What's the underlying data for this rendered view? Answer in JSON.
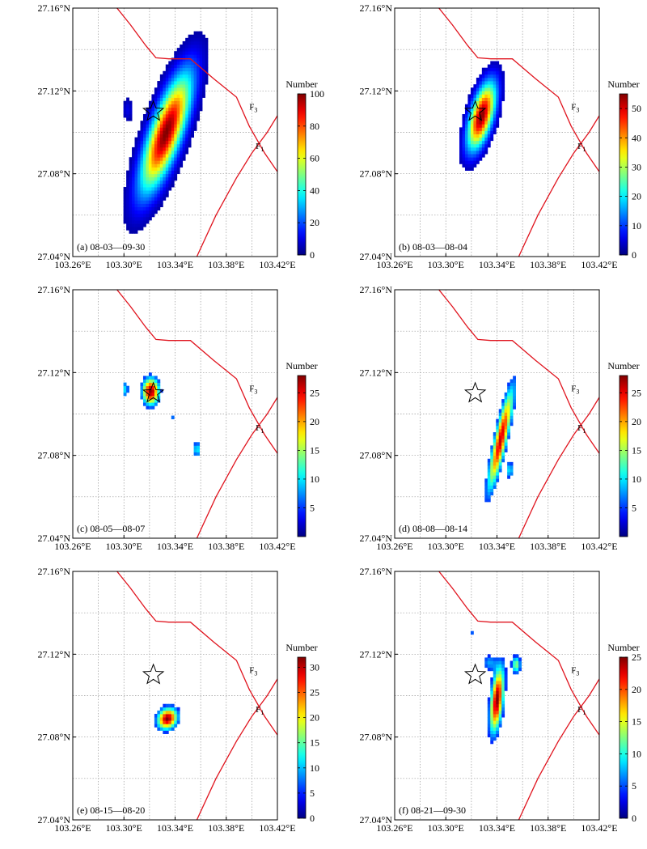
{
  "figure": {
    "panel_ids": [
      "a",
      "b",
      "c",
      "d",
      "e",
      "f"
    ],
    "colorbar_title": "Number",
    "fault_labels": {
      "f3": "F",
      "f3_sub": "3",
      "f1": "F",
      "f1_sub": "1"
    }
  },
  "chart_data": [
    {
      "id": "a",
      "type": "heatmap",
      "label": "(a) 08-03—09-30",
      "xlim": [
        103.26,
        103.42
      ],
      "ylim": [
        27.04,
        27.16
      ],
      "xticks": [
        "103.26°E",
        "103.30°E",
        "103.34°E",
        "103.38°E",
        "103.42°E"
      ],
      "yticks": [
        "27.04°N",
        "27.08°N",
        "27.12°N",
        "27.16°N"
      ],
      "colorbar": {
        "min": 0,
        "max": 100,
        "ticks": [
          "0",
          "20",
          "40",
          "60",
          "80",
          "100"
        ]
      },
      "epicenter": [
        103.323,
        27.11
      ],
      "blobs": [
        {
          "cx": 103.333,
          "cy": 27.1,
          "sx": 0.0075,
          "sy": 0.022,
          "rot": 32,
          "peak": 100
        },
        {
          "cx": 103.303,
          "cy": 27.111,
          "sx": 0.003,
          "sy": 0.004,
          "rot": 0,
          "peak": 10
        }
      ],
      "threshold": 4
    },
    {
      "id": "b",
      "type": "heatmap",
      "label": "(b) 08-03—08-04",
      "xlim": [
        103.26,
        103.42
      ],
      "ylim": [
        27.04,
        27.16
      ],
      "xticks": [
        "103.26°E",
        "103.30°E",
        "103.34°E",
        "103.38°E",
        "103.42°E"
      ],
      "yticks": [
        "27.04°N",
        "27.08°N",
        "27.12°N",
        "27.16°N"
      ],
      "colorbar": {
        "min": 0,
        "max": 55,
        "ticks": [
          "0",
          "10",
          "20",
          "30",
          "40",
          "50"
        ]
      },
      "epicenter": [
        103.323,
        27.11
      ],
      "blobs": [
        {
          "cx": 103.328,
          "cy": 27.108,
          "sx": 0.0055,
          "sy": 0.012,
          "rot": 28,
          "peak": 55
        }
      ],
      "threshold": 3
    },
    {
      "id": "c",
      "type": "heatmap",
      "label": "(c) 08-05—08-07",
      "xlim": [
        103.26,
        103.42
      ],
      "ylim": [
        27.04,
        27.16
      ],
      "xticks": [
        "103.26°E",
        "103.30°E",
        "103.34°E",
        "103.38°E",
        "103.42°E"
      ],
      "yticks": [
        "27.04°N",
        "27.08°N",
        "27.12°N",
        "27.16°N"
      ],
      "colorbar": {
        "min": 0,
        "max": 28,
        "ticks": [
          "5",
          "10",
          "15",
          "20",
          "25"
        ]
      },
      "epicenter": [
        103.323,
        27.11
      ],
      "blobs": [
        {
          "cx": 103.321,
          "cy": 27.111,
          "sx": 0.0045,
          "sy": 0.0045,
          "rot": 20,
          "peak": 28
        },
        {
          "cx": 103.301,
          "cy": 27.112,
          "sx": 0.002,
          "sy": 0.003,
          "rot": 0,
          "peak": 10
        },
        {
          "cx": 103.357,
          "cy": 27.083,
          "sx": 0.002,
          "sy": 0.0028,
          "rot": 0,
          "peak": 11
        },
        {
          "cx": 103.339,
          "cy": 27.098,
          "sx": 0.0012,
          "sy": 0.0012,
          "rot": 0,
          "peak": 9
        }
      ],
      "threshold": 5
    },
    {
      "id": "d",
      "type": "heatmap",
      "label": "(d) 08-08—08-14",
      "xlim": [
        103.26,
        103.42
      ],
      "ylim": [
        27.04,
        27.16
      ],
      "xticks": [
        "103.26°E",
        "103.30°E",
        "103.34°E",
        "103.38°E",
        "103.42°E"
      ],
      "yticks": [
        "27.04°N",
        "27.08°N",
        "27.12°N",
        "27.16°N"
      ],
      "colorbar": {
        "min": 0,
        "max": 28,
        "ticks": [
          "5",
          "10",
          "15",
          "20",
          "25"
        ]
      },
      "epicenter": [
        103.323,
        27.11
      ],
      "blobs": [
        {
          "cx": 103.343,
          "cy": 27.088,
          "sx": 0.0032,
          "sy": 0.018,
          "rot": 20,
          "peak": 26
        },
        {
          "cx": 103.35,
          "cy": 27.073,
          "sx": 0.0018,
          "sy": 0.003,
          "rot": 0,
          "peak": 11
        }
      ],
      "threshold": 5
    },
    {
      "id": "e",
      "type": "heatmap",
      "label": "(e) 08-15—08-20",
      "xlim": [
        103.26,
        103.42
      ],
      "ylim": [
        27.04,
        27.16
      ],
      "xticks": [
        "103.26°E",
        "103.30°E",
        "103.34°E",
        "103.38°E",
        "103.42°E"
      ],
      "yticks": [
        "27.04°N",
        "27.08°N",
        "27.12°N",
        "27.16°N"
      ],
      "colorbar": {
        "min": 0,
        "max": 32,
        "ticks": [
          "0",
          "5",
          "10",
          "15",
          "20",
          "25",
          "30"
        ]
      },
      "epicenter": [
        103.323,
        27.11
      ],
      "blobs": [
        {
          "cx": 103.334,
          "cy": 27.089,
          "sx": 0.0055,
          "sy": 0.0035,
          "rot": -10,
          "peak": 32
        }
      ],
      "threshold": 5
    },
    {
      "id": "f",
      "type": "heatmap",
      "label": "(f) 08-21—09-30",
      "xlim": [
        103.26,
        103.42
      ],
      "ylim": [
        27.04,
        27.16
      ],
      "xticks": [
        "103.26°E",
        "103.30°E",
        "103.34°E",
        "103.38°E",
        "103.42°E"
      ],
      "yticks": [
        "27.04°N",
        "27.08°N",
        "27.12°N",
        "27.16°N"
      ],
      "colorbar": {
        "min": 0,
        "max": 25,
        "ticks": [
          "0",
          "5",
          "10",
          "15",
          "20",
          "25"
        ]
      },
      "epicenter": [
        103.323,
        27.11
      ],
      "blobs": [
        {
          "cx": 103.34,
          "cy": 27.098,
          "sx": 0.0033,
          "sy": 0.011,
          "rot": 10,
          "peak": 25
        },
        {
          "cx": 103.355,
          "cy": 27.115,
          "sx": 0.0025,
          "sy": 0.003,
          "rot": 0,
          "peak": 13
        },
        {
          "cx": 103.334,
          "cy": 27.116,
          "sx": 0.004,
          "sy": 0.003,
          "rot": 0,
          "peak": 7
        },
        {
          "cx": 103.32,
          "cy": 27.13,
          "sx": 0.0012,
          "sy": 0.0015,
          "rot": 0,
          "peak": 6
        }
      ],
      "threshold": 4
    }
  ],
  "faults": {
    "F3": [
      [
        103.292,
        27.162
      ],
      [
        103.305,
        27.152
      ],
      [
        103.317,
        27.142
      ],
      [
        103.325,
        27.136
      ],
      [
        103.335,
        27.1355
      ],
      [
        103.352,
        27.1355
      ],
      [
        103.37,
        27.126
      ],
      [
        103.388,
        27.117
      ],
      [
        103.398,
        27.103
      ],
      [
        103.41,
        27.09
      ],
      [
        103.42,
        27.081
      ]
    ],
    "F1": [
      [
        103.357,
        27.04
      ],
      [
        103.372,
        27.06
      ],
      [
        103.388,
        27.078
      ],
      [
        103.4,
        27.09
      ],
      [
        103.412,
        27.1
      ],
      [
        103.42,
        27.108
      ]
    ]
  }
}
